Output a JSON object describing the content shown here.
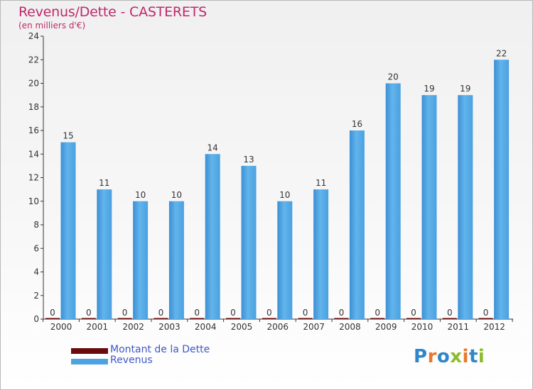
{
  "chart_data": {
    "type": "bar",
    "title": "Revenus/Dette - CASTERETS",
    "subtitle": "(en milliers d'€)",
    "categories": [
      "2000",
      "2001",
      "2002",
      "2003",
      "2004",
      "2005",
      "2006",
      "2007",
      "2008",
      "2009",
      "2010",
      "2011",
      "2012"
    ],
    "series": [
      {
        "name": "Montant de la Dette",
        "color": "#6b0a0a",
        "values": [
          0,
          0,
          0,
          0,
          0,
          0,
          0,
          0,
          0,
          0,
          0,
          0,
          0
        ]
      },
      {
        "name": "Revenus",
        "color": "#4da3e2",
        "values": [
          15,
          11,
          10,
          10,
          14,
          13,
          10,
          11,
          16,
          20,
          19,
          19,
          22
        ]
      }
    ],
    "ylim": [
      0,
      24
    ],
    "yticks": [
      0,
      2,
      4,
      6,
      8,
      10,
      12,
      14,
      16,
      18,
      20,
      22,
      24
    ],
    "grid": false,
    "legend": "bottom-left"
  },
  "logo": {
    "text": "Proxiti",
    "colors": {
      "blue": "#2f86c9",
      "orange": "#e8782a",
      "green": "#8bbd2a"
    }
  }
}
